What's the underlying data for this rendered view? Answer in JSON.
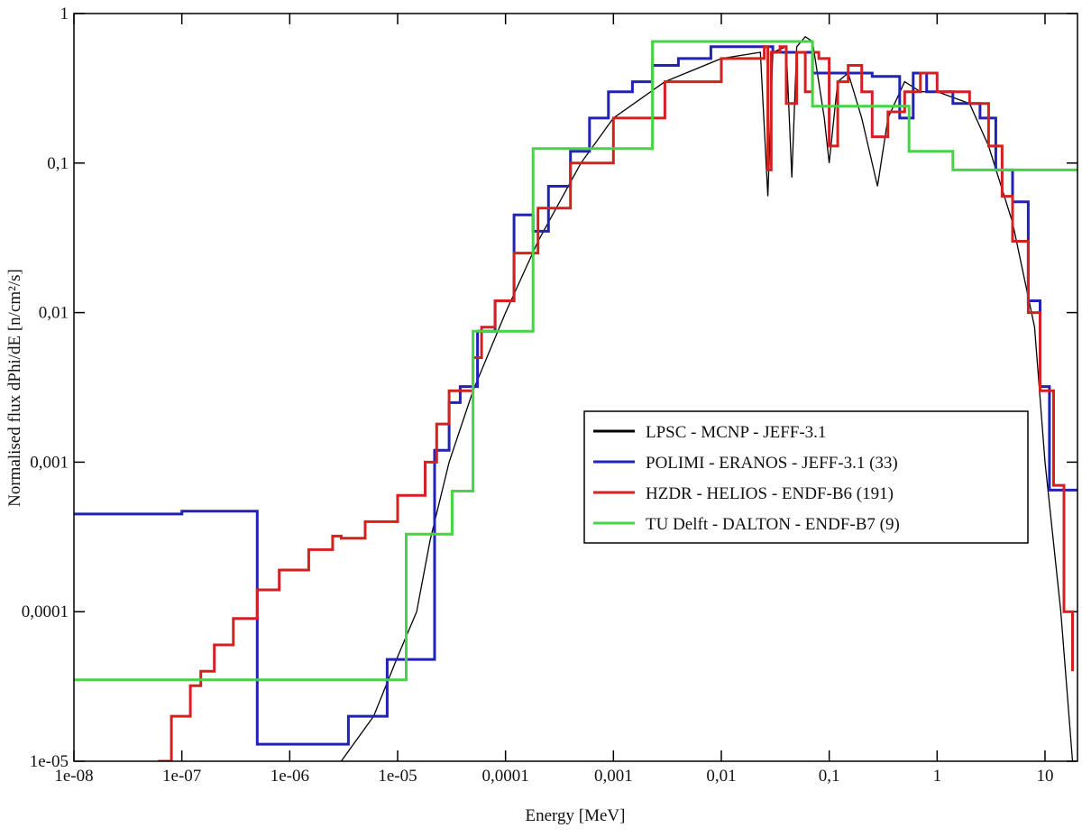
{
  "chart_data": {
    "type": "line",
    "xlabel": "Energy [MeV]",
    "ylabel": "Normalised flux dPhi/dE [n/cm²/s]",
    "xscale": "log",
    "yscale": "log",
    "xlim": [
      1e-08,
      20
    ],
    "ylim": [
      1e-05,
      1
    ],
    "xticks": [
      {
        "value": 1e-08,
        "label": "1e-08"
      },
      {
        "value": 1e-07,
        "label": "1e-07"
      },
      {
        "value": 1e-06,
        "label": "1e-06"
      },
      {
        "value": 1e-05,
        "label": "1e-05"
      },
      {
        "value": 0.0001,
        "label": "0,0001"
      },
      {
        "value": 0.001,
        "label": "0,001"
      },
      {
        "value": 0.01,
        "label": "0,01"
      },
      {
        "value": 0.1,
        "label": "0,1"
      },
      1,
      10
    ],
    "yticks": [
      {
        "value": 1e-05,
        "label": "1e-05"
      },
      {
        "value": 0.0001,
        "label": "0,0001"
      },
      {
        "value": 0.001,
        "label": "0,001"
      },
      {
        "value": 0.01,
        "label": "0,01"
      },
      {
        "value": 0.1,
        "label": "0,1"
      },
      1
    ],
    "legend": "center right",
    "series": [
      {
        "name": "LPSC - MCNP - JEFF-3.1",
        "color": "#000000",
        "drawstyle": "line",
        "x": [
          3e-06,
          6e-06,
          1e-05,
          1.5e-05,
          2e-05,
          3e-05,
          5e-05,
          0.0001,
          0.0002,
          0.0005,
          0.001,
          0.003,
          0.01,
          0.023,
          0.027,
          0.03,
          0.04,
          0.045,
          0.05,
          0.06,
          0.07,
          0.09,
          0.1,
          0.12,
          0.15,
          0.2,
          0.28,
          0.35,
          0.5,
          0.7,
          1,
          2,
          3,
          5,
          8,
          10,
          14,
          18
        ],
        "values": [
          1e-05,
          2e-05,
          5e-05,
          0.0001,
          0.0003,
          0.001,
          0.003,
          0.01,
          0.03,
          0.1,
          0.2,
          0.35,
          0.5,
          0.55,
          0.06,
          0.55,
          0.6,
          0.08,
          0.6,
          0.7,
          0.65,
          0.2,
          0.1,
          0.35,
          0.4,
          0.2,
          0.07,
          0.2,
          0.35,
          0.3,
          0.3,
          0.25,
          0.13,
          0.04,
          0.008,
          0.001,
          0.0001,
          1e-05
        ]
      },
      {
        "name": "POLIMI - ERANOS - JEFF-3.1 (33)",
        "color": "#2222b8",
        "drawstyle": "steps",
        "x": [
          1e-08,
          1e-07,
          5e-07,
          3.5e-06,
          8e-06,
          2.2e-05,
          3e-05,
          3.8e-05,
          5.5e-05,
          8e-05,
          0.00012,
          0.00018,
          0.00025,
          0.0004,
          0.0006,
          0.0009,
          0.0015,
          0.0023,
          0.004,
          0.008,
          0.02,
          0.03,
          0.07,
          0.25,
          0.45,
          0.6,
          0.8,
          1.4,
          2.5,
          3.5,
          5,
          7,
          9,
          11,
          20
        ],
        "values": [
          0.00045,
          0.00047,
          1.3e-05,
          2e-05,
          4.8e-05,
          0.0012,
          0.0025,
          0.0032,
          0.0075,
          0.012,
          0.045,
          0.035,
          0.07,
          0.12,
          0.2,
          0.3,
          0.35,
          0.45,
          0.5,
          0.6,
          0.6,
          0.55,
          0.4,
          0.38,
          0.2,
          0.4,
          0.3,
          0.25,
          0.2,
          0.09,
          0.055,
          0.012,
          0.0032,
          0.00065,
          0.00065
        ]
      },
      {
        "name": "HZDR - HELIOS - ENDF-B6 (191)",
        "color": "#d42020",
        "drawstyle": "steps",
        "x": [
          6e-08,
          8e-08,
          1.2e-07,
          1.5e-07,
          2e-07,
          3e-07,
          5e-07,
          8e-07,
          1.5e-06,
          2.5e-06,
          3e-06,
          5e-06,
          1e-05,
          1.8e-05,
          2.3e-05,
          3e-05,
          5e-05,
          6e-05,
          8e-05,
          0.00012,
          0.0002,
          0.0004,
          0.001,
          0.003,
          0.01,
          0.025,
          0.027,
          0.029,
          0.035,
          0.04,
          0.05,
          0.06,
          0.07,
          0.08,
          0.1,
          0.12,
          0.15,
          0.2,
          0.25,
          0.35,
          0.5,
          0.7,
          1,
          2,
          3,
          4,
          5,
          7,
          9,
          12,
          15,
          18
        ],
        "values": [
          1e-05,
          2e-05,
          3.2e-05,
          4e-05,
          6e-05,
          9e-05,
          0.00014,
          0.00019,
          0.00026,
          0.00032,
          0.00031,
          0.0004,
          0.0006,
          0.001,
          0.0018,
          0.003,
          0.005,
          0.008,
          0.012,
          0.025,
          0.05,
          0.1,
          0.2,
          0.35,
          0.5,
          0.6,
          0.09,
          0.55,
          0.6,
          0.25,
          0.55,
          0.3,
          0.55,
          0.5,
          0.13,
          0.35,
          0.45,
          0.3,
          0.15,
          0.22,
          0.3,
          0.4,
          0.3,
          0.25,
          0.13,
          0.06,
          0.03,
          0.01,
          0.003,
          0.0007,
          0.0001,
          4e-05
        ]
      },
      {
        "name": "TU Delft - DALTON - ENDF-B7 (9)",
        "color": "#44d444",
        "drawstyle": "steps",
        "x": [
          1e-08,
          1.2e-05,
          3.2e-05,
          5e-05,
          0.00018,
          0.0023,
          0.07,
          0.55,
          1.4,
          20
        ],
        "values": [
          3.5e-05,
          0.00033,
          0.00064,
          0.0075,
          0.125,
          0.65,
          0.24,
          0.12,
          0.09,
          0.09
        ]
      }
    ]
  }
}
